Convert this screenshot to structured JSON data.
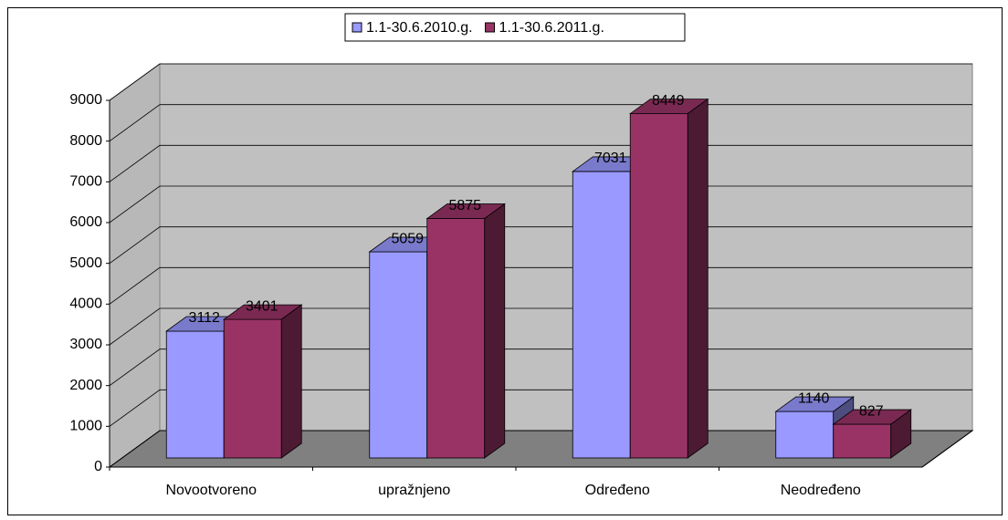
{
  "chart_data": {
    "type": "bar3d",
    "categories": [
      "Novootvoreno",
      "upražnjeno",
      "Određeno",
      "Neodređeno"
    ],
    "series": [
      {
        "name": "1.1-30.6.2010.g.",
        "color": "#9999ff",
        "values": [
          3112,
          5059,
          7031,
          1140
        ]
      },
      {
        "name": "1.1-30.6.2011.g.",
        "color": "#993366",
        "values": [
          3401,
          5875,
          8449,
          827
        ]
      }
    ],
    "ylim": [
      0,
      9000
    ],
    "yticks": [
      0,
      1000,
      2000,
      3000,
      4000,
      5000,
      6000,
      7000,
      8000,
      9000
    ],
    "grid": true,
    "legend": "top"
  }
}
